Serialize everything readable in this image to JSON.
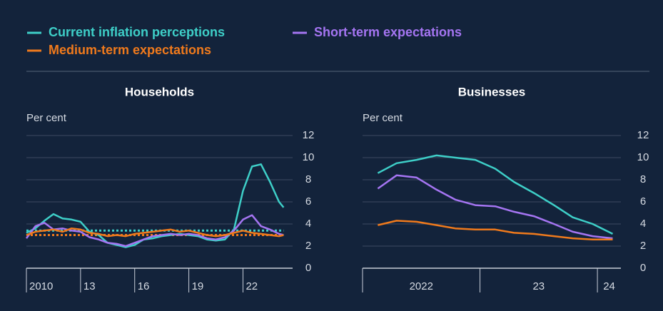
{
  "legend_series": [
    {
      "name": "Current inflation perceptions",
      "color": "#3ecfc8"
    },
    {
      "name": "Short-term expectations",
      "color": "#a575f2"
    },
    {
      "name": "Medium-term expectations",
      "color": "#f07a1c"
    }
  ],
  "chart_data": [
    {
      "type": "line",
      "title": "Households",
      "y_label": "Per cent",
      "x": [
        2010,
        2010.5,
        2011,
        2011.5,
        2012,
        2012.5,
        2013,
        2013.5,
        2014,
        2014.5,
        2015,
        2015.5,
        2016,
        2016.5,
        2017,
        2017.5,
        2018,
        2018.5,
        2019,
        2019.5,
        2020,
        2020.5,
        2021,
        2021.5,
        2022,
        2022.5,
        2023,
        2023.5,
        2024,
        2024.25
      ],
      "series": [
        {
          "color": "#3ecfc8",
          "values": [
            3.2,
            3.6,
            4.3,
            4.9,
            4.5,
            4.4,
            4.2,
            3.3,
            3.0,
            2.3,
            2.1,
            1.9,
            2.1,
            2.6,
            2.7,
            2.9,
            3.0,
            3.1,
            3.0,
            2.9,
            2.6,
            2.5,
            2.6,
            3.5,
            7.0,
            9.2,
            9.4,
            7.8,
            6.0,
            5.5
          ]
        },
        {
          "color": "#a575f2",
          "values": [
            2.7,
            3.8,
            4.1,
            3.5,
            3.6,
            3.4,
            3.3,
            2.8,
            2.6,
            2.3,
            2.2,
            2.0,
            2.3,
            2.6,
            2.9,
            3.0,
            3.1,
            3.0,
            3.1,
            3.0,
            2.7,
            2.6,
            2.8,
            3.4,
            4.4,
            4.8,
            3.8,
            3.5,
            3.1,
            3.0
          ]
        },
        {
          "color": "#f07a1c",
          "values": [
            3.0,
            3.3,
            3.4,
            3.5,
            3.3,
            3.6,
            3.5,
            3.2,
            3.1,
            2.9,
            3.0,
            2.9,
            3.1,
            3.2,
            3.3,
            3.4,
            3.5,
            3.3,
            3.4,
            3.2,
            3.0,
            2.9,
            3.0,
            3.2,
            3.4,
            3.2,
            3.1,
            3.0,
            2.9,
            3.0
          ]
        }
      ],
      "reference_lines": [
        {
          "value": 3.4,
          "color": "#3ecfc8"
        },
        {
          "value": 3.0,
          "color": "#f07a1c"
        }
      ],
      "xlim": [
        2010,
        2024.75
      ],
      "xticks": [
        2010,
        {
          "value": 2013,
          "label": "13"
        },
        {
          "value": 2016,
          "label": "16"
        },
        {
          "value": 2019,
          "label": "19"
        },
        {
          "value": 2022,
          "label": "22"
        }
      ],
      "x_label_position": "after-tick",
      "ylim": [
        0,
        12
      ],
      "yticks": [
        0,
        2,
        4,
        6,
        8,
        10,
        12
      ],
      "grid": true
    },
    {
      "type": "line",
      "title": "Businesses",
      "y_label": "Per cent",
      "x": [
        2022.13,
        2022.29,
        2022.46,
        2022.63,
        2022.79,
        2022.96,
        2023.13,
        2023.29,
        2023.46,
        2023.63,
        2023.79,
        2023.96,
        2024.13
      ],
      "series": [
        {
          "color": "#3ecfc8",
          "values": [
            8.6,
            9.5,
            9.8,
            10.2,
            10.0,
            9.8,
            9.0,
            7.8,
            6.8,
            5.7,
            4.6,
            4.0,
            3.1
          ]
        },
        {
          "color": "#a575f2",
          "values": [
            7.2,
            8.4,
            8.2,
            7.1,
            6.2,
            5.7,
            5.6,
            5.1,
            4.7,
            4.0,
            3.3,
            2.9,
            2.7
          ]
        },
        {
          "color": "#f07a1c",
          "values": [
            3.9,
            4.3,
            4.2,
            3.9,
            3.6,
            3.5,
            3.5,
            3.2,
            3.1,
            2.9,
            2.7,
            2.6,
            2.6
          ]
        }
      ],
      "xlim": [
        2022,
        2024.2
      ],
      "xticks": [
        2022,
        {
          "value": 2023,
          "label": "23"
        },
        {
          "value": 2024,
          "label": "24"
        }
      ],
      "x_label_position": "band-center",
      "ylim": [
        0,
        12
      ],
      "yticks": [
        0,
        2,
        4,
        6,
        8,
        10,
        12
      ],
      "grid": true
    }
  ]
}
